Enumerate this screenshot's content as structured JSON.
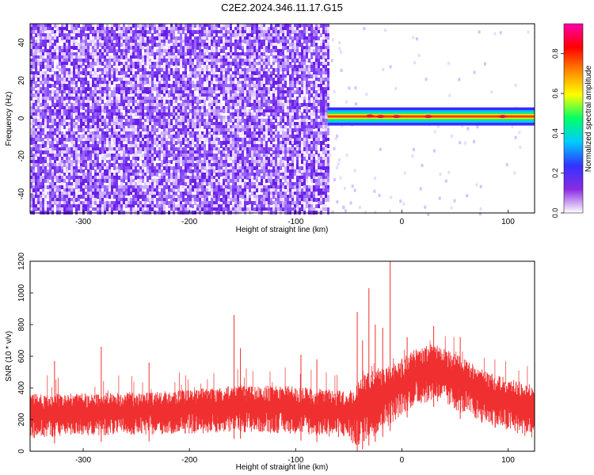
{
  "title": "C2E2.2024.346.11.17.G15",
  "chart_data": [
    {
      "type": "heatmap",
      "xlabel": "Height of straight line (km)",
      "ylabel": "Frequency (Hz)",
      "xlim": [
        -350,
        125
      ],
      "ylim": [
        -50,
        50
      ],
      "xticks": [
        -300,
        -200,
        -100,
        0,
        100
      ],
      "yticks": [
        -40,
        -20,
        0,
        20,
        40
      ],
      "noise_region_x": [
        -350,
        -70
      ],
      "signal_band": {
        "x_start": -70,
        "x_end": 125,
        "center_freq": 1,
        "halfwidth": 3
      },
      "colorbar": {
        "label": "Normalized spectral amplitude",
        "range": [
          0,
          0.95
        ],
        "ticks": [
          0.0,
          0.2,
          0.4,
          0.6,
          0.8
        ],
        "colors": [
          "#ffffff",
          "#8a2be2",
          "#3333ff",
          "#00ccff",
          "#00ff66",
          "#ffff00",
          "#ff8800",
          "#ff0000",
          "#ff00aa"
        ]
      }
    },
    {
      "type": "line",
      "xlabel": "Height of straight line (km)",
      "ylabel": "SNR (10 * v/v)",
      "xlim": [
        -350,
        125
      ],
      "ylim": [
        0,
        1200
      ],
      "xticks": [
        -300,
        -200,
        -100,
        0,
        100
      ],
      "yticks": [
        0,
        200,
        400,
        600,
        800,
        1000,
        1200
      ],
      "color": "#f03030",
      "envelope": [
        {
          "x": -350,
          "low": 80,
          "high": 360
        },
        {
          "x": -300,
          "low": 100,
          "high": 370
        },
        {
          "x": -250,
          "low": 100,
          "high": 370
        },
        {
          "x": -200,
          "low": 110,
          "high": 390
        },
        {
          "x": -150,
          "low": 120,
          "high": 420
        },
        {
          "x": -100,
          "low": 110,
          "high": 410
        },
        {
          "x": -50,
          "low": 80,
          "high": 380
        },
        {
          "x": -45,
          "low": 20,
          "high": 420
        },
        {
          "x": -35,
          "low": 60,
          "high": 500
        },
        {
          "x": -20,
          "low": 120,
          "high": 520
        },
        {
          "x": -5,
          "low": 200,
          "high": 560
        },
        {
          "x": 10,
          "low": 280,
          "high": 640
        },
        {
          "x": 30,
          "low": 320,
          "high": 680
        },
        {
          "x": 50,
          "low": 260,
          "high": 620
        },
        {
          "x": 75,
          "low": 180,
          "high": 520
        },
        {
          "x": 100,
          "low": 120,
          "high": 460
        },
        {
          "x": 125,
          "low": 80,
          "high": 420
        }
      ],
      "spikes": [
        {
          "x": -327,
          "y": 570
        },
        {
          "x": -283,
          "y": 660
        },
        {
          "x": -238,
          "y": 560
        },
        {
          "x": -158,
          "y": 860
        },
        {
          "x": -152,
          "y": 650
        },
        {
          "x": -95,
          "y": 610
        },
        {
          "x": -80,
          "y": 580
        },
        {
          "x": -42,
          "y": 880
        },
        {
          "x": -37,
          "y": 700
        },
        {
          "x": -31,
          "y": 1030
        },
        {
          "x": -25,
          "y": 800
        },
        {
          "x": -18,
          "y": 780
        },
        {
          "x": -11,
          "y": 1200
        },
        {
          "x": 5,
          "y": 720
        },
        {
          "x": 30,
          "y": 790
        },
        {
          "x": 55,
          "y": 720
        }
      ]
    }
  ]
}
